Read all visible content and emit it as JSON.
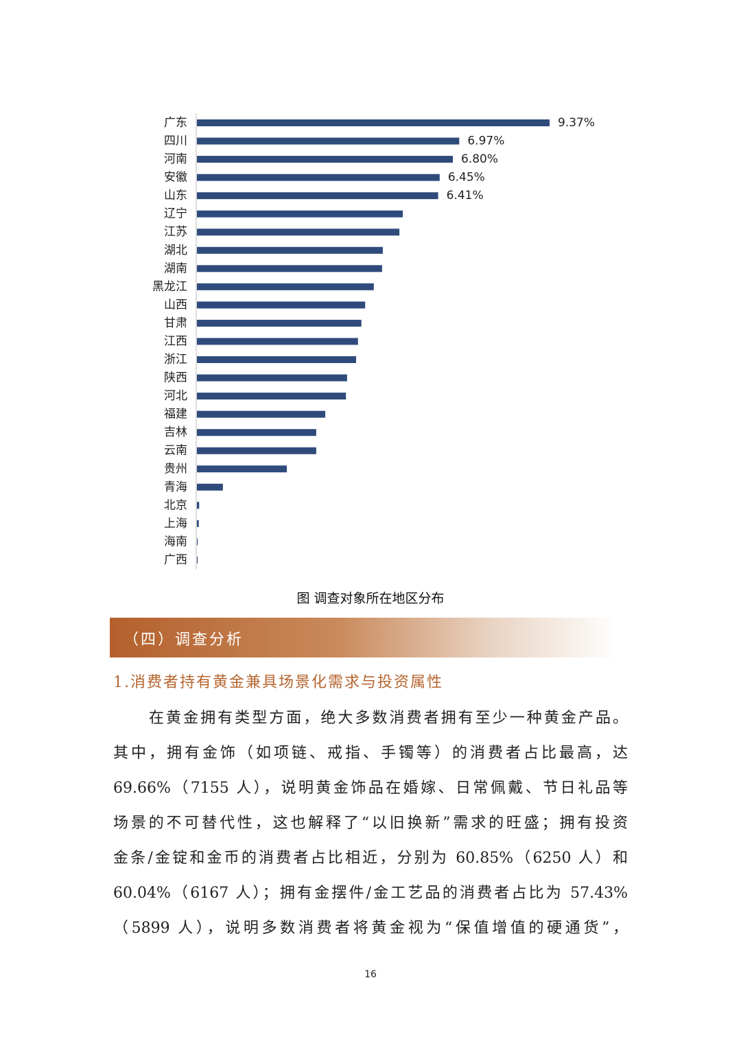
{
  "chart_data": {
    "type": "bar",
    "orientation": "horizontal",
    "color": "#2f4b7c",
    "categories": [
      "广东",
      "四川",
      "河南",
      "安徽",
      "山东",
      "辽宁",
      "江苏",
      "湖北",
      "湖南",
      "黑龙江",
      "山西",
      "甘肃",
      "江西",
      "浙江",
      "陕西",
      "河北",
      "福建",
      "吉林",
      "云南",
      "贵州",
      "青海",
      "北京",
      "上海",
      "海南",
      "广西"
    ],
    "values": [
      9.37,
      6.97,
      6.8,
      6.45,
      6.41,
      5.47,
      5.38,
      4.94,
      4.92,
      4.7,
      4.47,
      4.37,
      4.28,
      4.23,
      3.99,
      3.96,
      3.41,
      3.17,
      3.17,
      2.39,
      0.69,
      0.06,
      0.05,
      0.02,
      0.02
    ],
    "value_labels": [
      "9.37%",
      "6.97%",
      "6.80%",
      "6.45%",
      "6.41%",
      null,
      null,
      null,
      null,
      null,
      null,
      null,
      null,
      null,
      null,
      null,
      null,
      null,
      null,
      null,
      null,
      null,
      null,
      null,
      null
    ],
    "caption": "图  调查对象所在地区分布"
  },
  "section": {
    "title": "（四）调查分析"
  },
  "heading": "1.消费者持有黄金兼具场景化需求与投资属性",
  "paragraph": {
    "lines": [
      "在黄金拥有类型方面，绝大多数消费者拥有至少一种黄金产品。",
      "其中，拥有金饰（如项链、戒指、手镯等）的消费者占比最高，达",
      "69.66%（7155 人），说明黄金饰品在婚嫁、日常佩戴、节日礼品等",
      "场景的不可替代性，这也解释了“以旧换新”需求的旺盛；拥有投资",
      "金条/金锭和金币的消费者占比相近，分别为 60.85%（6250 人）和",
      "60.04%（6167 人）；拥有金摆件/金工艺品的消费者占比为 57.43%",
      "（5899 人），说明多数消费者将黄金视为“保值增值的硬通货”，"
    ]
  },
  "page_number": "16"
}
